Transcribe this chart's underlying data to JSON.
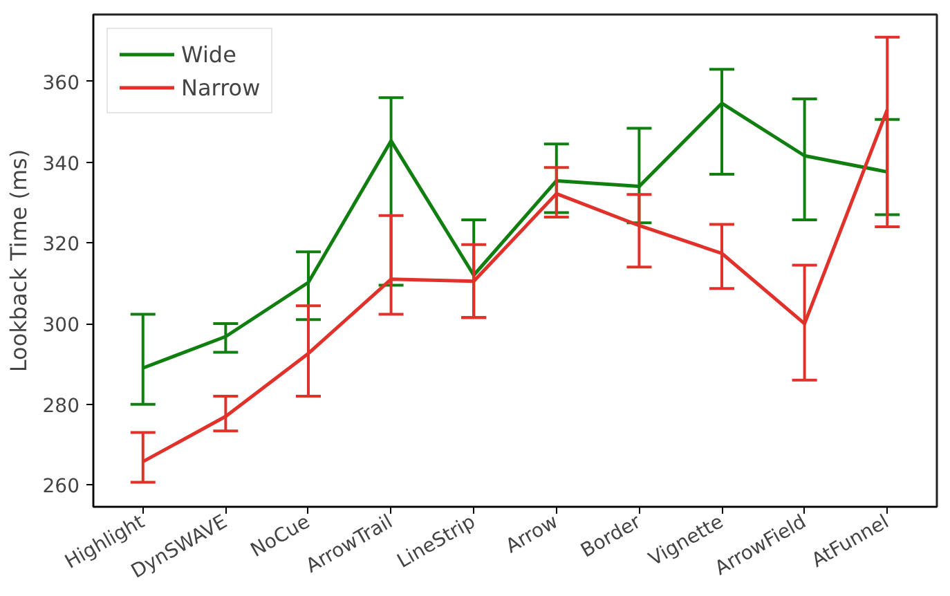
{
  "chart_data": {
    "type": "line",
    "ylabel": "Lookback Time (ms)",
    "categories": [
      "Highlight",
      "DynSWAVE",
      "NoCue",
      "ArrowTrail",
      "LineStrip",
      "Arrow",
      "Border",
      "Vignette",
      "ArrowField",
      "AtFunnel"
    ],
    "ylim": [
      254.6,
      376.6
    ],
    "yticks": [
      260,
      280,
      300,
      320,
      340,
      360
    ],
    "grid": false,
    "legend": "top left",
    "line_style": "solid",
    "marker": "none",
    "series": [
      {
        "name": "Wide",
        "color": "#107f10",
        "values": [
          289,
          296.8,
          310.2,
          345.3,
          312,
          335.4,
          334,
          354.6,
          341.6,
          337.6
        ],
        "errors": [
          [
            280,
            302.3
          ],
          [
            292.9,
            300
          ],
          [
            301,
            317.8
          ],
          [
            309.5,
            356
          ],
          [
            301.5,
            325.7
          ],
          [
            327.5,
            344.5
          ],
          [
            325,
            348.4
          ],
          [
            337,
            363
          ],
          [
            325.7,
            355.7
          ],
          [
            327,
            350.6
          ]
        ]
      },
      {
        "name": "Narrow",
        "color": "#e0322a",
        "values": [
          265.8,
          277,
          292.6,
          311,
          310.5,
          332.2,
          324.3,
          317.4,
          300,
          353
        ],
        "errors": [
          [
            260.7,
            273
          ],
          [
            273.4,
            282
          ],
          [
            282,
            304.4
          ],
          [
            302.3,
            326.8
          ],
          [
            301.5,
            319.6
          ],
          [
            326.4,
            338.7
          ],
          [
            314,
            332
          ],
          [
            308.7,
            324.6
          ],
          [
            286,
            314.5
          ],
          [
            324,
            371
          ]
        ]
      }
    ]
  }
}
